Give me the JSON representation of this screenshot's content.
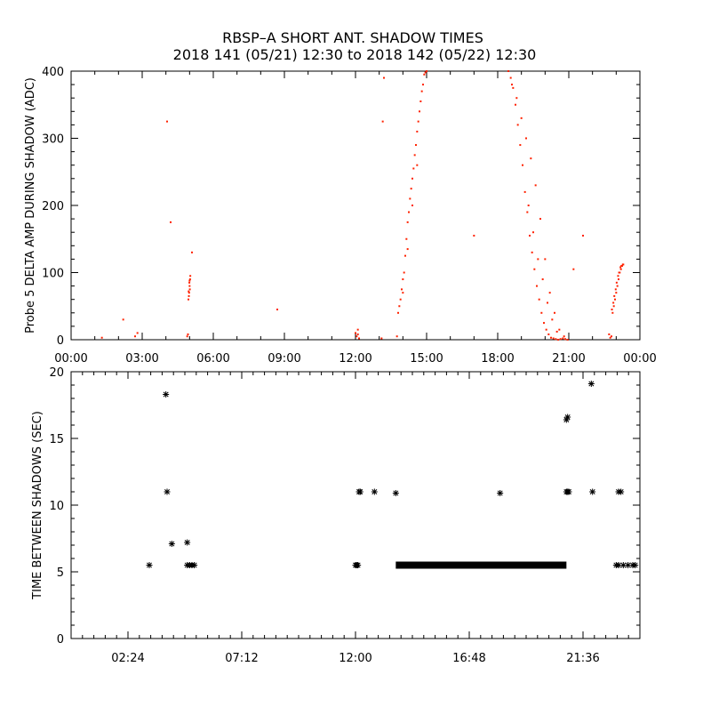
{
  "title": {
    "line1": "RBSP–A SHORT ANT. SHADOW TIMES",
    "line2": "2018 141 (05/21) 12:30 to 2018 142 (05/22) 12:30"
  },
  "chart_data": [
    {
      "type": "scatter",
      "ylabel": "Probe 5 DELTA AMP DURING SHADOW (ADC)",
      "xlim": [
        0,
        24
      ],
      "ylim": [
        0,
        400
      ],
      "x_ticks": [
        0,
        3,
        6,
        9,
        12,
        15,
        18,
        21,
        24
      ],
      "x_tick_labels": [
        "00:00",
        "03:00",
        "06:00",
        "09:00",
        "12:00",
        "15:00",
        "18:00",
        "21:00",
        "00:00"
      ],
      "y_ticks": [
        0,
        100,
        200,
        300,
        400
      ],
      "y_tick_labels": [
        "0",
        "100",
        "200",
        "300",
        "400"
      ],
      "color": "#ff2200",
      "series": [
        {
          "x": [
            4.95,
            4.98,
            5.0,
            5.02,
            4.97,
            5.01,
            4.99,
            5.03,
            4.96,
            5.0,
            4.9,
            4.93,
            1.3,
            2.7,
            2.2,
            4.05,
            4.2,
            5.1,
            8.7,
            12.0,
            12.05,
            12.1,
            12.15,
            12.1,
            13.1,
            13.2,
            13.75,
            13.8,
            13.9,
            14.0,
            14.1,
            14.2,
            14.3,
            14.4,
            14.5,
            14.6,
            14.7,
            14.8,
            14.9,
            15.0,
            13.85,
            13.95,
            14.05,
            14.15,
            14.25,
            14.35,
            14.45,
            14.55,
            14.65,
            14.75,
            14.85,
            14.95,
            14.0,
            14.2,
            14.4,
            14.6,
            18.45,
            18.55,
            18.65,
            18.75,
            18.85,
            18.95,
            19.05,
            19.15,
            19.25,
            19.35,
            19.45,
            19.55,
            19.65,
            19.75,
            19.85,
            19.95,
            20.05,
            20.15,
            20.25,
            20.35,
            20.45,
            20.55,
            20.65,
            20.75,
            20.85,
            20.95,
            18.6,
            18.8,
            19.0,
            19.2,
            19.4,
            19.6,
            19.8,
            20.0,
            20.2,
            20.4,
            20.6,
            20.8,
            19.3,
            19.5,
            19.7,
            19.9,
            20.1,
            20.3,
            20.5,
            17.0,
            21.6,
            21.2,
            22.8,
            22.85,
            22.9,
            22.95,
            23.0,
            23.05,
            23.1,
            23.15,
            23.2,
            23.25,
            23.3,
            22.82,
            22.88,
            22.92,
            22.98,
            23.02,
            23.08,
            23.12,
            23.18,
            23.22,
            23.28,
            22.75,
            22.7,
            2.8,
            13.15
          ],
          "y": [
            60,
            70,
            80,
            90,
            65,
            75,
            85,
            95,
            72,
            88,
            5,
            8,
            3,
            5,
            30,
            325,
            175,
            130,
            45,
            10,
            5,
            15,
            2,
            8,
            2,
            390,
            5,
            40,
            60,
            90,
            125,
            175,
            210,
            240,
            275,
            310,
            340,
            370,
            395,
            400,
            50,
            75,
            100,
            150,
            190,
            225,
            255,
            290,
            325,
            355,
            380,
            398,
            70,
            135,
            200,
            260,
            400,
            390,
            375,
            350,
            320,
            290,
            260,
            220,
            190,
            155,
            130,
            105,
            80,
            60,
            40,
            25,
            15,
            8,
            3,
            2,
            1,
            0,
            1,
            2,
            1,
            0,
            380,
            360,
            330,
            300,
            270,
            230,
            180,
            120,
            70,
            40,
            15,
            5,
            200,
            160,
            120,
            90,
            55,
            30,
            12,
            155,
            155,
            105,
            5,
            40,
            50,
            60,
            70,
            80,
            90,
            100,
            105,
            110,
            112,
            45,
            55,
            65,
            75,
            85,
            95,
            100,
            108,
            110,
            112,
            3,
            8,
            10,
            325
          ]
        }
      ]
    },
    {
      "type": "scatter",
      "ylabel": "TIME BETWEEN SHADOWS (SEC)",
      "xlim": [
        0,
        24
      ],
      "ylim": [
        0,
        20
      ],
      "x_ticks": [
        2.4,
        7.2,
        12.0,
        16.8,
        21.6
      ],
      "x_tick_labels": [
        "02:24",
        "07:12",
        "12:00",
        "16:48",
        "21:36"
      ],
      "y_ticks": [
        0,
        5,
        10,
        15,
        20
      ],
      "y_tick_labels": [
        "0",
        "5",
        "10",
        "15",
        "20"
      ],
      "color": "#000000",
      "series": [
        {
          "x": [
            3.3,
            4.0,
            4.05,
            4.25,
            4.9,
            5.1,
            4.9,
            5.0,
            5.1,
            5.2,
            12.0,
            12.05,
            12.1,
            12.15,
            12.2,
            12.8,
            13.7,
            18.1,
            20.9,
            20.95,
            20.9,
            20.95,
            21.0,
            21.95,
            22.0,
            23.1,
            23.2,
            23.8,
            23.0,
            23.1,
            23.3,
            23.5,
            23.7
          ],
          "y": [
            5.5,
            18.3,
            11.0,
            7.1,
            7.2,
            5.5,
            5.5,
            5.5,
            5.5,
            5.5,
            5.5,
            5.5,
            5.5,
            11.0,
            11.0,
            11.0,
            10.9,
            10.9,
            16.4,
            16.6,
            11.0,
            11.0,
            11.0,
            19.1,
            11.0,
            11.0,
            11.0,
            5.5,
            5.5,
            5.5,
            5.5,
            5.5,
            5.5
          ]
        },
        {
          "name": "",
          "x_range": [
            13.7,
            20.9
          ],
          "y": 5.5
        }
      ]
    }
  ]
}
